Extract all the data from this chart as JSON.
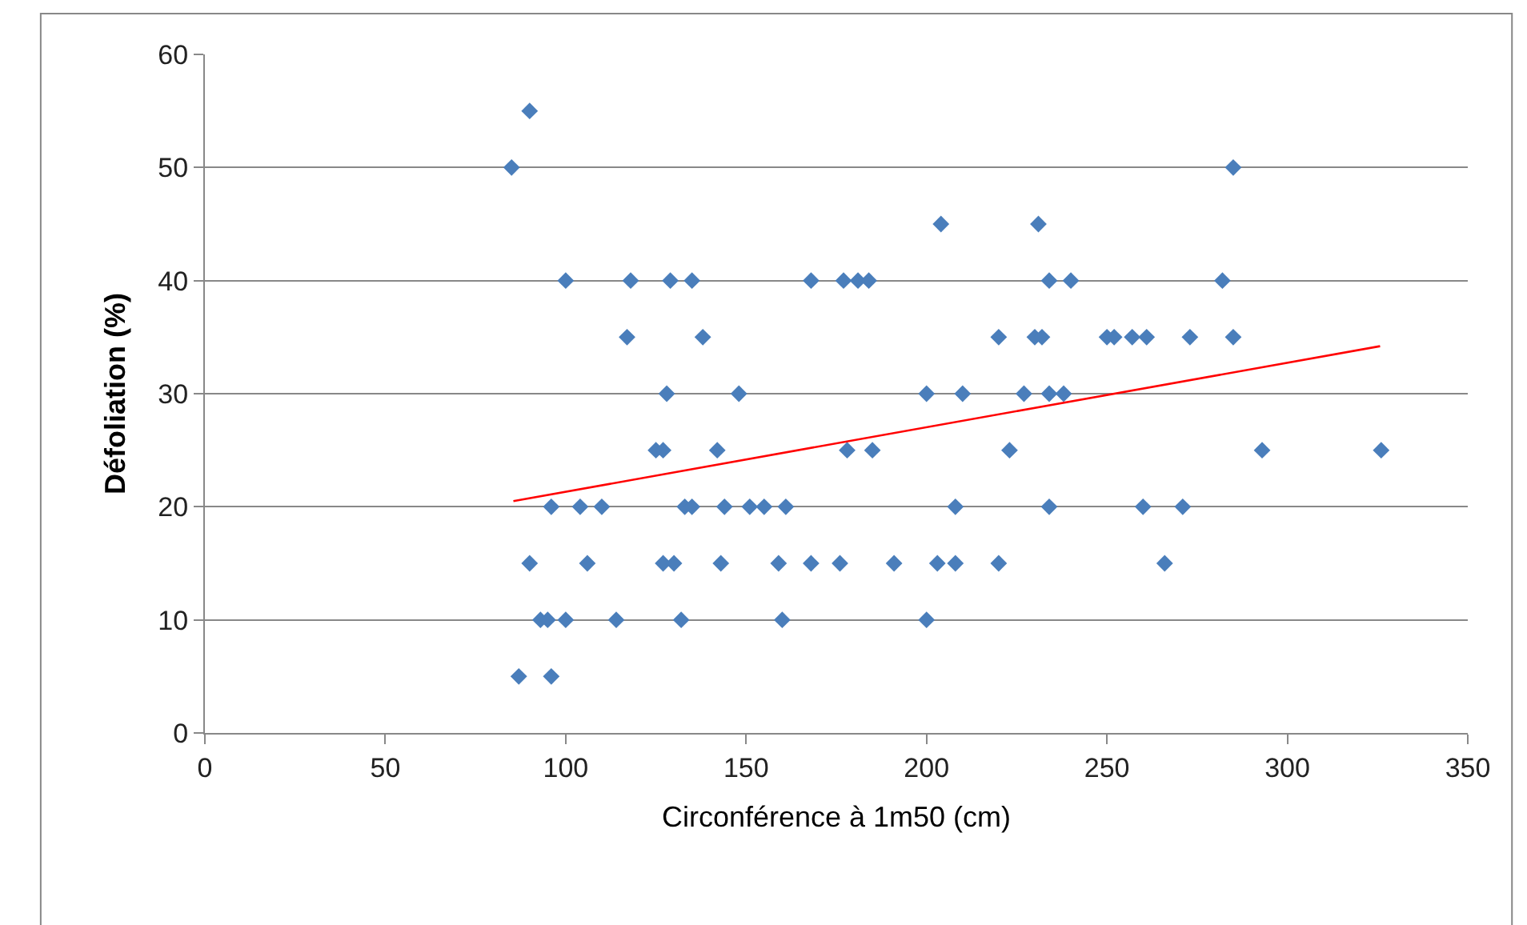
{
  "chart_data": {
    "type": "scatter",
    "xlabel": "Circonférence à 1m50 (cm)",
    "ylabel": "Défoliation (%)",
    "xlim": [
      0,
      350
    ],
    "xticks": [
      0,
      50,
      100,
      150,
      200,
      250,
      300,
      350
    ],
    "ylim": [
      0,
      60
    ],
    "yticks": [
      0,
      10,
      20,
      30,
      40,
      50,
      60
    ],
    "grid": "y",
    "marker": "diamond",
    "legend": false,
    "series": [
      {
        "color": "#4a7ebb",
        "x": [
          90,
          85,
          285,
          204,
          231,
          100,
          118,
          129,
          135,
          168,
          177,
          181,
          184,
          234,
          240,
          282,
          117,
          138,
          220,
          230,
          232,
          250,
          252,
          257,
          261,
          273,
          285,
          128,
          148,
          200,
          210,
          227,
          234,
          238,
          125,
          127,
          142,
          178,
          185,
          223,
          293,
          326,
          96,
          104,
          110,
          133,
          135,
          144,
          151,
          155,
          161,
          208,
          234,
          260,
          271,
          90,
          106,
          127,
          130,
          143,
          159,
          168,
          176,
          191,
          203,
          208,
          220,
          266,
          93,
          95,
          100,
          114,
          132,
          160,
          200,
          87,
          96
        ],
        "values": [
          55,
          50,
          50,
          45,
          45,
          40,
          40,
          40,
          40,
          40,
          40,
          40,
          40,
          40,
          40,
          40,
          35,
          35,
          35,
          35,
          35,
          35,
          35,
          35,
          35,
          35,
          35,
          30,
          30,
          30,
          30,
          30,
          30,
          30,
          25,
          25,
          25,
          25,
          25,
          25,
          25,
          25,
          20,
          20,
          20,
          20,
          20,
          20,
          20,
          20,
          20,
          20,
          20,
          20,
          20,
          15,
          15,
          15,
          15,
          15,
          15,
          15,
          15,
          15,
          15,
          15,
          15,
          15,
          10,
          10,
          10,
          10,
          10,
          10,
          10,
          5,
          5
        ]
      },
      {
        "type": "line",
        "marker": "none",
        "color": "#ff0000",
        "x": [
          85.5,
          325.7
        ],
        "values": [
          20.5,
          34.2
        ]
      }
    ]
  }
}
